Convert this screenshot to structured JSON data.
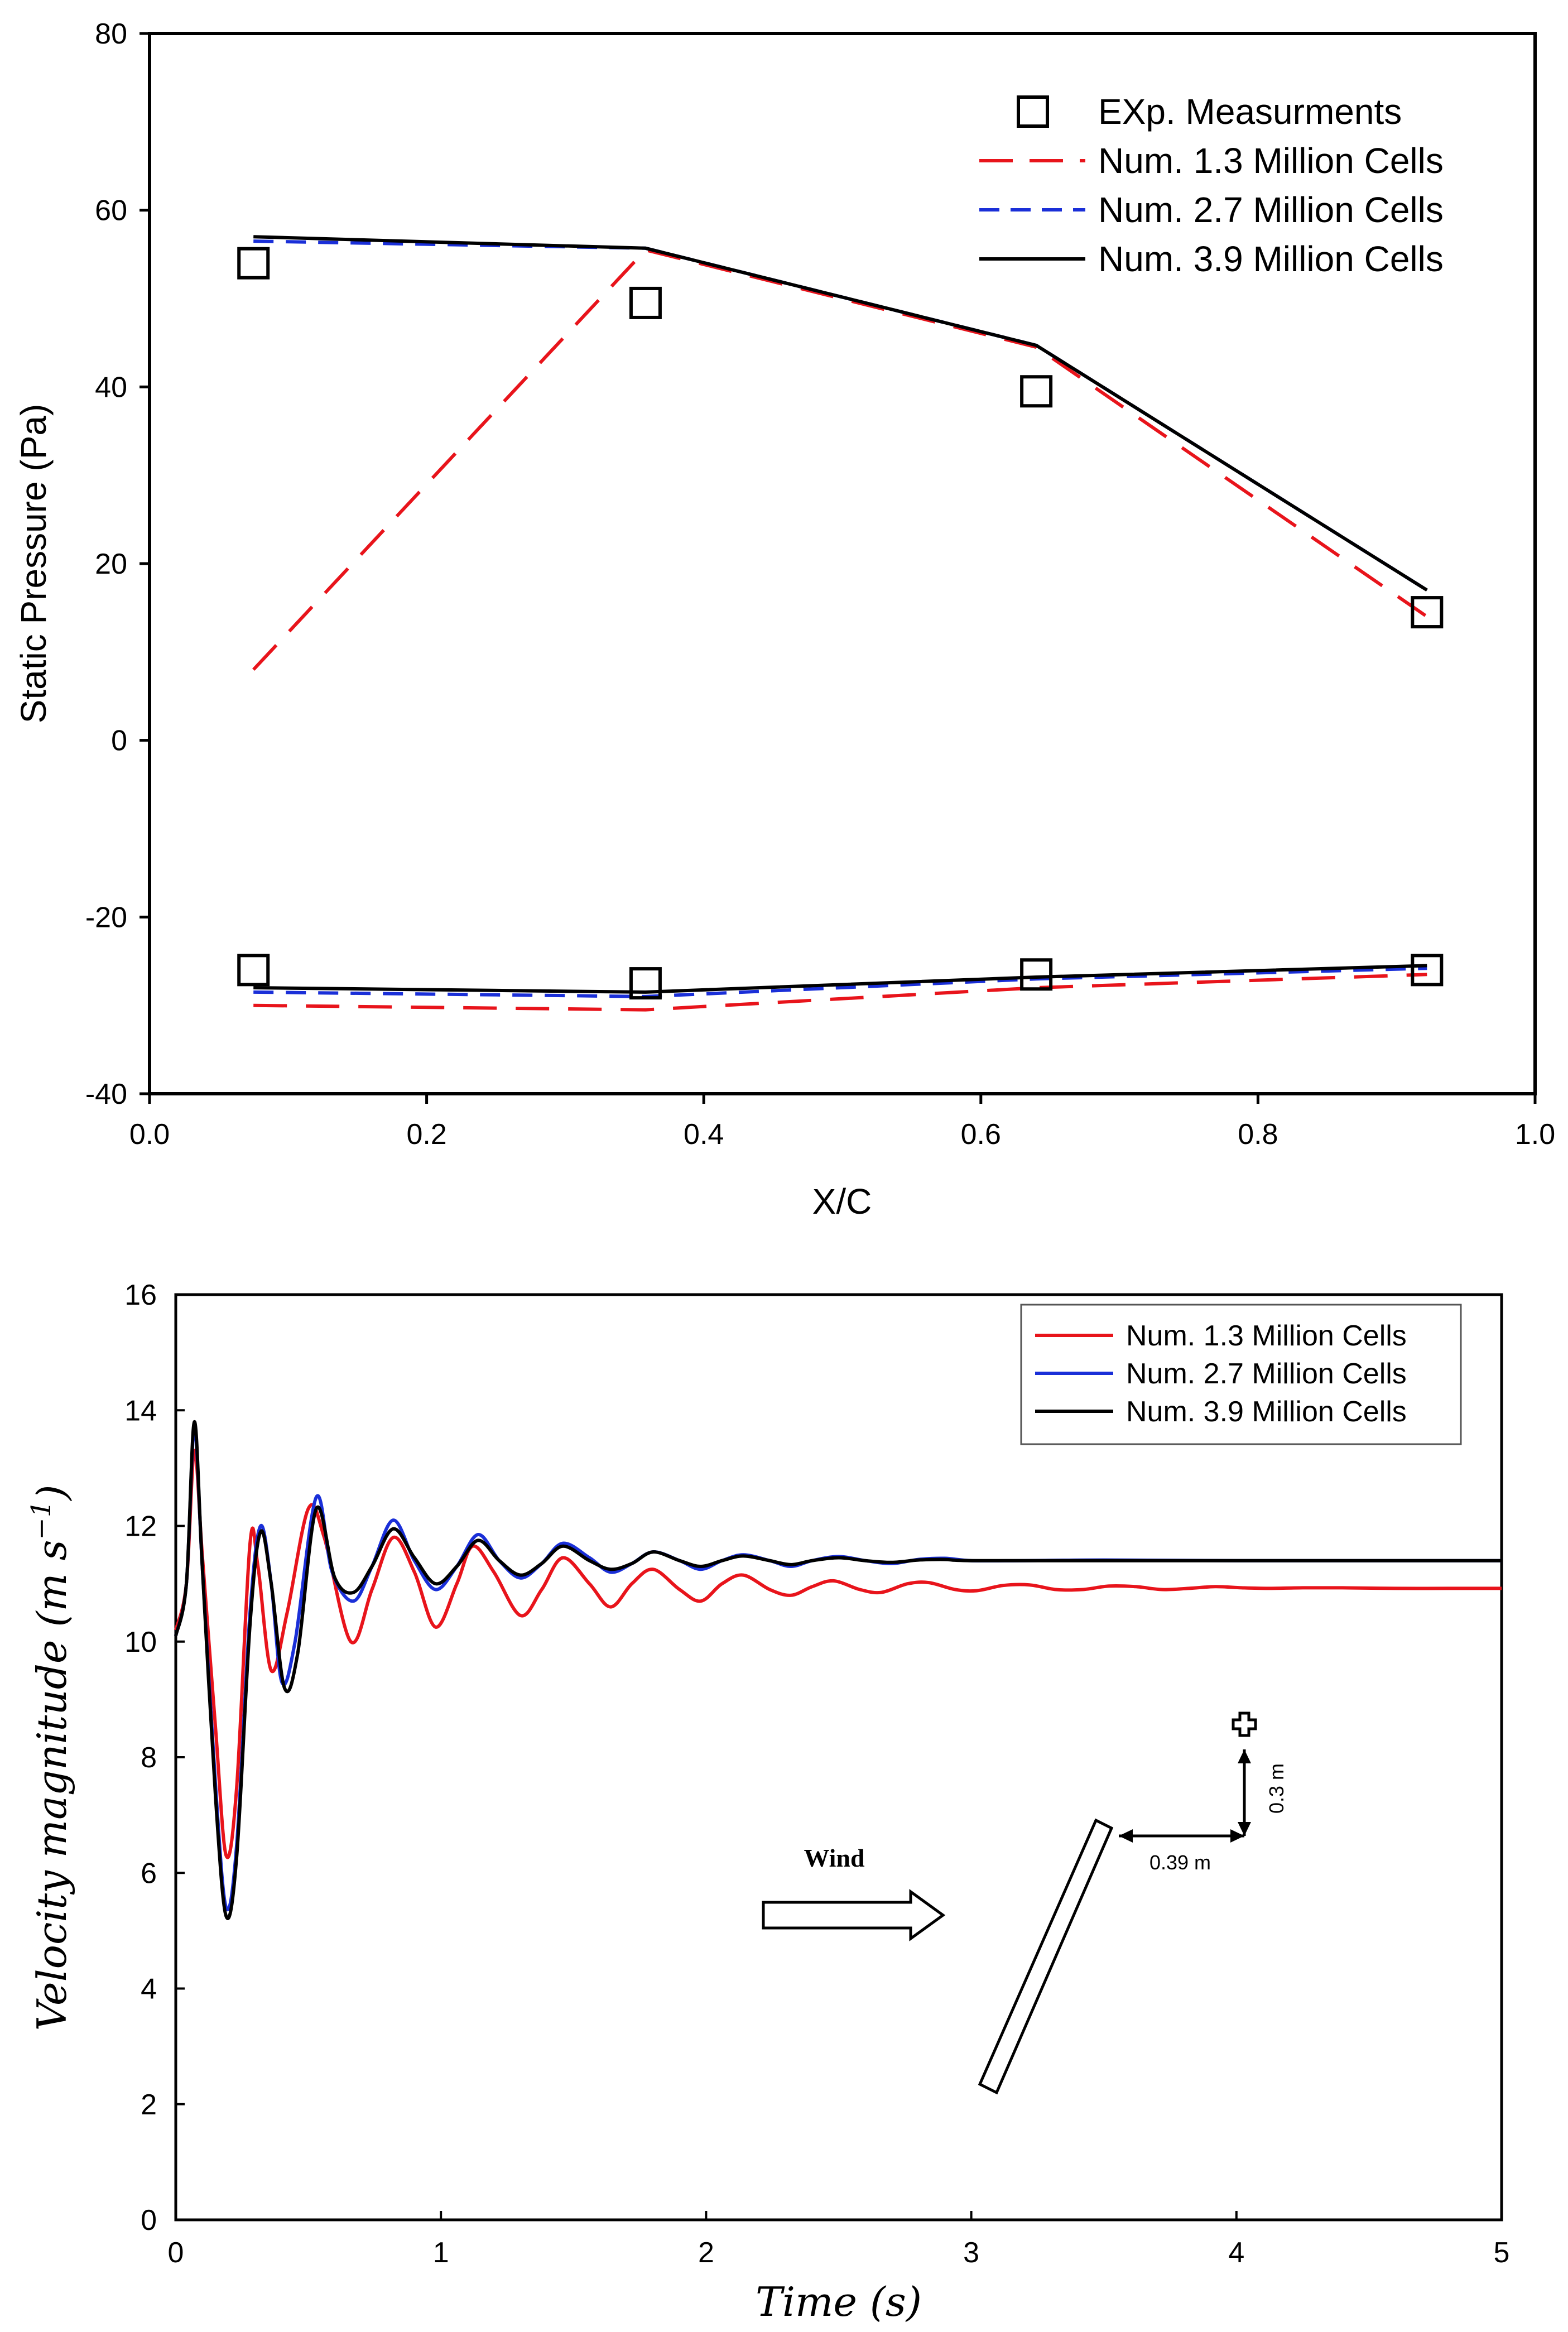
{
  "chart_data": [
    {
      "type": "line",
      "xlabel": "X/C",
      "ylabel": "Static Pressure (Pa)",
      "xlim": [
        0.0,
        1.0
      ],
      "ylim": [
        -40,
        80
      ],
      "xticks": [
        "0.0",
        "0.2",
        "0.4",
        "0.6",
        "0.8",
        "1.0"
      ],
      "yticks": [
        "80",
        "60",
        "40",
        "20",
        "0",
        "-20",
        "-40"
      ],
      "legend_position": "top-right",
      "grid": false,
      "series": [
        {
          "name": "EXp. Measurments",
          "style": "square-markers",
          "color": "#000000",
          "points": [
            [
              0.075,
              54
            ],
            [
              0.358,
              49.5
            ],
            [
              0.64,
              39.5
            ],
            [
              0.922,
              14.5
            ],
            [
              0.075,
              -26
            ],
            [
              0.358,
              -27.5
            ],
            [
              0.64,
              -26.5
            ],
            [
              0.922,
              -26
            ]
          ]
        },
        {
          "name": "Num. 1.3 Million Cells",
          "style": "long-dash",
          "color": "#e8141b",
          "segments": [
            [
              [
                0.075,
                8
              ],
              [
                0.358,
                55.5
              ],
              [
                0.64,
                44.5
              ],
              [
                0.922,
                14
              ]
            ],
            [
              [
                0.075,
                -30
              ],
              [
                0.358,
                -30.5
              ],
              [
                0.64,
                -28
              ],
              [
                0.922,
                -26.5
              ]
            ]
          ]
        },
        {
          "name": "Num. 2.7 Million Cells",
          "style": "dash",
          "color": "#1a2fd8",
          "segments": [
            [
              [
                0.075,
                56.5
              ],
              [
                0.358,
                55.7
              ],
              [
                0.64,
                44.7
              ],
              [
                0.922,
                17
              ]
            ],
            [
              [
                0.075,
                -28.5
              ],
              [
                0.358,
                -29
              ],
              [
                0.64,
                -27
              ],
              [
                0.922,
                -25.8
              ]
            ]
          ]
        },
        {
          "name": "Num. 3.9 Million Cells",
          "style": "solid",
          "color": "#000000",
          "segments": [
            [
              [
                0.075,
                57
              ],
              [
                0.358,
                55.7
              ],
              [
                0.64,
                44.7
              ],
              [
                0.922,
                17
              ]
            ],
            [
              [
                0.075,
                -28
              ],
              [
                0.358,
                -28.5
              ],
              [
                0.64,
                -26.8
              ],
              [
                0.922,
                -25.5
              ]
            ]
          ]
        }
      ]
    },
    {
      "type": "line",
      "xlabel": "Time  (s)",
      "ylabel": "Velocity  magnitude (m s",
      "ylabel_exponent": "−1",
      "ylabel_close": ")",
      "xlim": [
        0,
        5
      ],
      "ylim": [
        0,
        16
      ],
      "xticks": [
        "0",
        "1",
        "2",
        "3",
        "4",
        "5"
      ],
      "yticks": [
        "16",
        "14",
        "12",
        "10",
        "8",
        "6",
        "4",
        "2",
        "0"
      ],
      "legend_position": "top-right",
      "grid": false,
      "series": [
        {
          "name": "Num. 1.3 Million Cells",
          "color": "#e8141b",
          "points": [
            [
              0,
              10.2
            ],
            [
              0.04,
              11
            ],
            [
              0.07,
              13.3
            ],
            [
              0.1,
              11.5
            ],
            [
              0.15,
              8.5
            ],
            [
              0.19,
              6.3
            ],
            [
              0.23,
              7.5
            ],
            [
              0.28,
              11.7
            ],
            [
              0.31,
              11.3
            ],
            [
              0.36,
              9.5
            ],
            [
              0.42,
              10.5
            ],
            [
              0.5,
              12.3
            ],
            [
              0.56,
              11.8
            ],
            [
              0.66,
              10
            ],
            [
              0.74,
              10.9
            ],
            [
              0.82,
              11.8
            ],
            [
              0.9,
              11.2
            ],
            [
              0.98,
              10.25
            ],
            [
              1.06,
              11
            ],
            [
              1.12,
              11.65
            ],
            [
              1.2,
              11.2
            ],
            [
              1.3,
              10.45
            ],
            [
              1.38,
              10.9
            ],
            [
              1.46,
              11.45
            ],
            [
              1.56,
              11
            ],
            [
              1.64,
              10.6
            ],
            [
              1.72,
              11
            ],
            [
              1.8,
              11.25
            ],
            [
              1.9,
              10.9
            ],
            [
              1.98,
              10.7
            ],
            [
              2.06,
              11
            ],
            [
              2.14,
              11.15
            ],
            [
              2.24,
              10.9
            ],
            [
              2.32,
              10.8
            ],
            [
              2.4,
              10.95
            ],
            [
              2.48,
              11.05
            ],
            [
              2.58,
              10.9
            ],
            [
              2.66,
              10.85
            ],
            [
              2.76,
              11
            ],
            [
              2.84,
              11.02
            ],
            [
              2.94,
              10.9
            ],
            [
              3.02,
              10.88
            ],
            [
              3.12,
              10.97
            ],
            [
              3.22,
              10.98
            ],
            [
              3.32,
              10.9
            ],
            [
              3.42,
              10.9
            ],
            [
              3.52,
              10.96
            ],
            [
              3.62,
              10.95
            ],
            [
              3.72,
              10.9
            ],
            [
              3.82,
              10.92
            ],
            [
              3.92,
              10.95
            ],
            [
              4.02,
              10.93
            ],
            [
              4.12,
              10.92
            ],
            [
              4.25,
              10.93
            ],
            [
              4.4,
              10.93
            ],
            [
              4.6,
              10.92
            ],
            [
              4.8,
              10.92
            ],
            [
              5.0,
              10.92
            ]
          ]
        },
        {
          "name": "Num. 2.7 Million Cells",
          "color": "#1a2fd8",
          "points": [
            [
              0,
              10.1
            ],
            [
              0.04,
              11
            ],
            [
              0.07,
              13.7
            ],
            [
              0.1,
              11.3
            ],
            [
              0.15,
              7.5
            ],
            [
              0.19,
              5.4
            ],
            [
              0.23,
              6.5
            ],
            [
              0.28,
              10.5
            ],
            [
              0.32,
              12
            ],
            [
              0.36,
              11
            ],
            [
              0.4,
              9.3
            ],
            [
              0.45,
              10
            ],
            [
              0.53,
              12.5
            ],
            [
              0.59,
              11.2
            ],
            [
              0.67,
              10.7
            ],
            [
              0.74,
              11.3
            ],
            [
              0.82,
              12.1
            ],
            [
              0.9,
              11.4
            ],
            [
              0.98,
              10.9
            ],
            [
              1.06,
              11.3
            ],
            [
              1.14,
              11.85
            ],
            [
              1.22,
              11.4
            ],
            [
              1.3,
              11.1
            ],
            [
              1.38,
              11.35
            ],
            [
              1.46,
              11.7
            ],
            [
              1.56,
              11.45
            ],
            [
              1.64,
              11.2
            ],
            [
              1.72,
              11.35
            ],
            [
              1.8,
              11.55
            ],
            [
              1.9,
              11.4
            ],
            [
              1.98,
              11.25
            ],
            [
              2.06,
              11.4
            ],
            [
              2.14,
              11.5
            ],
            [
              2.24,
              11.4
            ],
            [
              2.32,
              11.3
            ],
            [
              2.4,
              11.4
            ],
            [
              2.5,
              11.47
            ],
            [
              2.6,
              11.4
            ],
            [
              2.7,
              11.35
            ],
            [
              2.8,
              11.42
            ],
            [
              2.9,
              11.44
            ],
            [
              3.0,
              11.4
            ],
            [
              3.2,
              11.4
            ],
            [
              3.5,
              11.41
            ],
            [
              4.0,
              11.4
            ],
            [
              4.5,
              11.4
            ],
            [
              5.0,
              11.4
            ]
          ]
        },
        {
          "name": "Num. 3.9 Million Cells",
          "color": "#000000",
          "points": [
            [
              0,
              10.1
            ],
            [
              0.04,
              11
            ],
            [
              0.07,
              13.8
            ],
            [
              0.1,
              11.3
            ],
            [
              0.15,
              7.3
            ],
            [
              0.19,
              5.25
            ],
            [
              0.23,
              6.3
            ],
            [
              0.28,
              10.3
            ],
            [
              0.32,
              11.9
            ],
            [
              0.36,
              11
            ],
            [
              0.41,
              9.2
            ],
            [
              0.46,
              9.8
            ],
            [
              0.53,
              12.3
            ],
            [
              0.6,
              11.1
            ],
            [
              0.67,
              10.85
            ],
            [
              0.74,
              11.3
            ],
            [
              0.82,
              11.95
            ],
            [
              0.9,
              11.45
            ],
            [
              0.98,
              11
            ],
            [
              1.06,
              11.3
            ],
            [
              1.14,
              11.75
            ],
            [
              1.22,
              11.4
            ],
            [
              1.3,
              11.15
            ],
            [
              1.38,
              11.35
            ],
            [
              1.46,
              11.65
            ],
            [
              1.56,
              11.4
            ],
            [
              1.64,
              11.25
            ],
            [
              1.72,
              11.35
            ],
            [
              1.8,
              11.55
            ],
            [
              1.9,
              11.4
            ],
            [
              1.98,
              11.3
            ],
            [
              2.06,
              11.4
            ],
            [
              2.14,
              11.48
            ],
            [
              2.24,
              11.4
            ],
            [
              2.32,
              11.33
            ],
            [
              2.4,
              11.4
            ],
            [
              2.5,
              11.45
            ],
            [
              2.6,
              11.4
            ],
            [
              2.7,
              11.37
            ],
            [
              2.8,
              11.41
            ],
            [
              2.9,
              11.42
            ],
            [
              3.0,
              11.4
            ],
            [
              3.5,
              11.4
            ],
            [
              4.0,
              11.4
            ],
            [
              4.5,
              11.4
            ],
            [
              5.0,
              11.4
            ]
          ]
        }
      ],
      "inset": {
        "wind_label": "Wind",
        "horizontal_distance": "0.39 m",
        "vertical_distance": "0.3 m"
      }
    }
  ]
}
